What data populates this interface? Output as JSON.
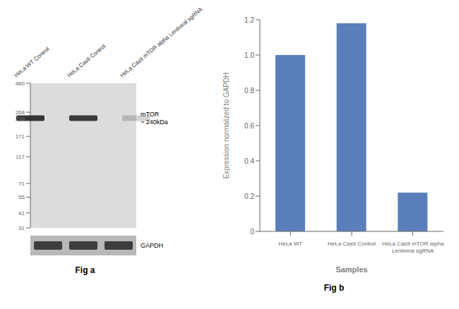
{
  "chart_data": [
    {
      "type": "blot",
      "title": "Fig a",
      "categories": [
        "HeLa WT Control",
        "HeLa Cas9 Control",
        "HeLa Cas9 mTOR alpha Lentiviral sgRNA"
      ],
      "log": "y",
      "ylim": [
        31,
        460
      ],
      "yticks": [
        460,
        268,
        238,
        171,
        117,
        71,
        55,
        41,
        31
      ],
      "annotations": [
        {
          "text": "mTOR\n~ 240kDa",
          "y": 240
        },
        {
          "text": "GAPDH"
        }
      ],
      "colors": [
        "#dcdcdc",
        "#b8b8b8"
      ]
    },
    {
      "type": "bar",
      "title": "Fig b",
      "categories": [
        "HeLa WT",
        "HeLa Cas9 Control",
        "HeLa Cas9 mTOR alpha\nLentiviral sgRNA"
      ],
      "values": [
        1.0,
        1.18,
        0.22
      ],
      "color": "#5b7fba",
      "ylim": [
        0,
        1.2
      ],
      "yticks": [
        0,
        0.2,
        0.4,
        0.6,
        0.8,
        {
          "value": 1.0,
          "label": "1.0"
        },
        1.2
      ],
      "xlabel": "Samples",
      "ylabel": "Expression  normalized to GAPDH"
    }
  ]
}
